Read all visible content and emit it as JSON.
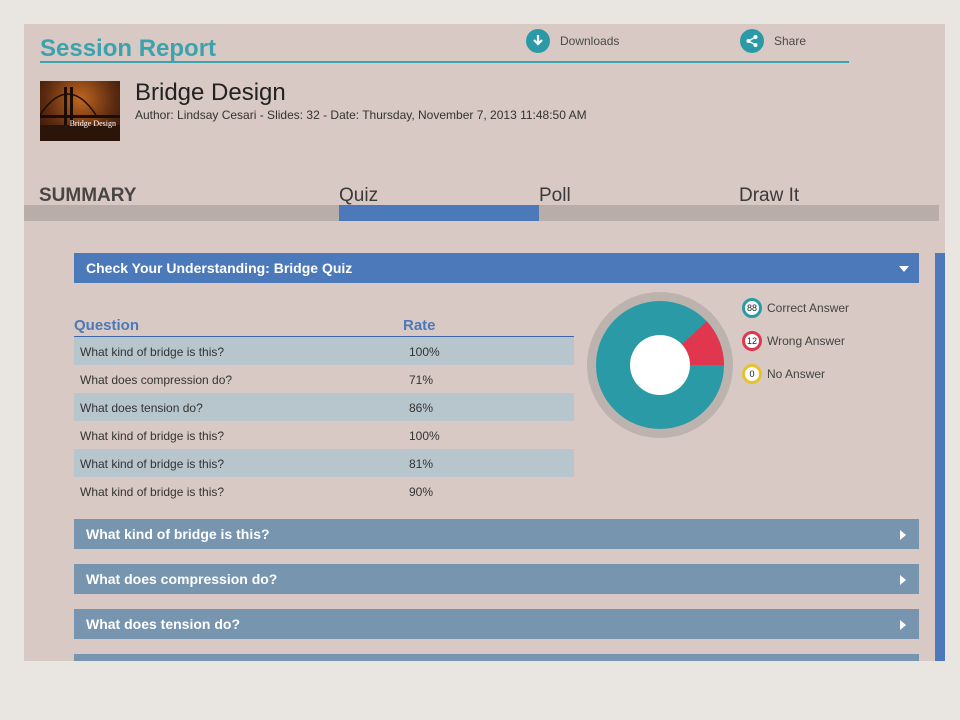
{
  "header": {
    "title": "Session Report",
    "downloads_label": "Downloads",
    "share_label": "Share"
  },
  "presentation": {
    "thumbnail_text": "Bridge Design",
    "title": "Bridge Design",
    "meta": "Author: Lindsay Cesari - Slides: 32 - Date: Thursday, November 7, 2013 11:48:50 AM"
  },
  "tabs": [
    {
      "label": "SUMMARY"
    },
    {
      "label": "Quiz",
      "active": true
    },
    {
      "label": "Poll"
    },
    {
      "label": "Draw It"
    }
  ],
  "quiz": {
    "section_title": "Check Your Understanding: Bridge Quiz",
    "columns": [
      "Question",
      "Rate"
    ],
    "rows": [
      {
        "question": "What kind of bridge is this?",
        "rate": "100%"
      },
      {
        "question": "What does compression do?",
        "rate": "71%"
      },
      {
        "question": "What does tension do?",
        "rate": "86%"
      },
      {
        "question": "What kind of bridge is this?",
        "rate": "100%"
      },
      {
        "question": "What kind of bridge is this?",
        "rate": "81%"
      },
      {
        "question": "What kind of bridge is this?",
        "rate": "90%"
      }
    ],
    "results": {
      "correct": {
        "count": "88",
        "label": "Correct Answer",
        "color": "#2a9aa6"
      },
      "wrong": {
        "count": "12",
        "label": "Wrong Answer",
        "color": "#e0374f"
      },
      "none": {
        "count": "0",
        "label": "No Answer",
        "color": "#e7c22e"
      }
    }
  },
  "questions": [
    {
      "label": "What kind of bridge is this?"
    },
    {
      "label": "What does compression do?"
    },
    {
      "label": "What does tension do?"
    }
  ],
  "colors": {
    "accent": "#3aa3ae",
    "header_blue": "#4c79b9",
    "row_blue": "#7895b0",
    "background": "#d8c9c4"
  }
}
